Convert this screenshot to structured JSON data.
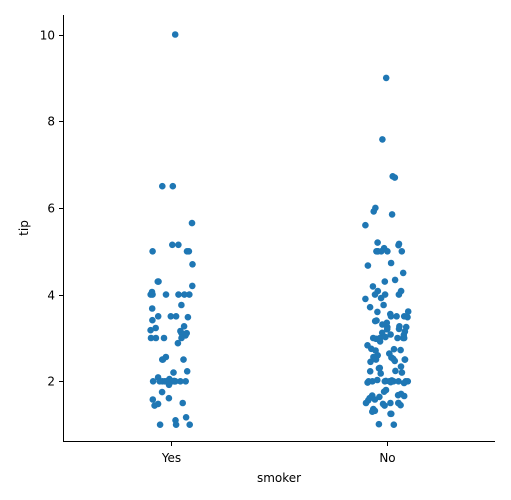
{
  "chart_data": {
    "type": "scatter",
    "subtype": "strip",
    "title": "",
    "xlabel": "smoker",
    "ylabel": "tip",
    "categories": [
      "Yes",
      "No"
    ],
    "ylim": [
      0.6,
      10.45
    ],
    "yticks": [
      2,
      4,
      6,
      8,
      10
    ],
    "ytick_labels": [
      "2",
      "4",
      "6",
      "8",
      "10"
    ],
    "grid": false,
    "legend": "none",
    "marker_color": "#1f77b4",
    "series": [
      {
        "category": "Yes",
        "values": [
          10.0,
          6.5,
          6.5,
          5.65,
          5.15,
          5.15,
          5.0,
          5.0,
          5.0,
          4.7,
          4.3,
          4.3,
          4.2,
          4.06,
          4.0,
          4.0,
          4.0,
          4.0,
          4.0,
          4.0,
          3.76,
          3.68,
          3.5,
          3.5,
          3.5,
          3.48,
          3.41,
          3.27,
          3.23,
          3.18,
          3.16,
          3.12,
          3.11,
          3.09,
          3.06,
          3.0,
          3.0,
          3.0,
          3.0,
          2.88,
          2.56,
          2.5,
          2.5,
          2.5,
          2.23,
          2.2,
          2.09,
          2.05,
          2.01,
          2.0,
          2.0,
          2.0,
          2.0,
          2.0,
          2.0,
          2.0,
          2.0,
          2.0,
          2.0,
          2.0,
          2.0,
          2.0,
          1.92,
          1.75,
          1.61,
          1.58,
          1.5,
          1.48,
          1.44,
          1.17,
          1.1,
          1.0,
          1.0,
          1.0
        ]
      },
      {
        "category": "No",
        "values": [
          9.0,
          7.58,
          6.73,
          6.7,
          6.0,
          5.92,
          5.85,
          5.6,
          5.2,
          5.17,
          5.14,
          5.07,
          5.0,
          5.0,
          5.0,
          5.0,
          5.0,
          5.0,
          4.73,
          4.67,
          4.5,
          4.34,
          4.3,
          4.19,
          4.08,
          4.08,
          4.0,
          4.0,
          4.0,
          3.92,
          3.9,
          3.76,
          3.71,
          3.61,
          3.6,
          3.55,
          3.5,
          3.5,
          3.5,
          3.48,
          3.4,
          3.39,
          3.35,
          3.31,
          3.27,
          3.25,
          3.25,
          3.21,
          3.2,
          3.15,
          3.12,
          3.08,
          3.07,
          3.02,
          3.0,
          3.0,
          3.0,
          3.0,
          3.0,
          2.98,
          2.92,
          2.83,
          2.75,
          2.74,
          2.72,
          2.71,
          2.64,
          2.6,
          2.56,
          2.55,
          2.52,
          2.5,
          2.5,
          2.5,
          2.47,
          2.45,
          2.34,
          2.31,
          2.3,
          2.24,
          2.23,
          2.2,
          2.18,
          2.03,
          2.02,
          2.01,
          2.0,
          2.0,
          2.0,
          2.0,
          2.0,
          2.0,
          2.0,
          2.0,
          2.0,
          2.0,
          1.98,
          1.97,
          1.96,
          1.8,
          1.76,
          1.71,
          1.68,
          1.67,
          1.66,
          1.64,
          1.61,
          1.58,
          1.56,
          1.5,
          1.5,
          1.5,
          1.5,
          1.48,
          1.45,
          1.44,
          1.36,
          1.32,
          1.3,
          1.25,
          1.25,
          1.01,
          1.0
        ]
      }
    ]
  }
}
